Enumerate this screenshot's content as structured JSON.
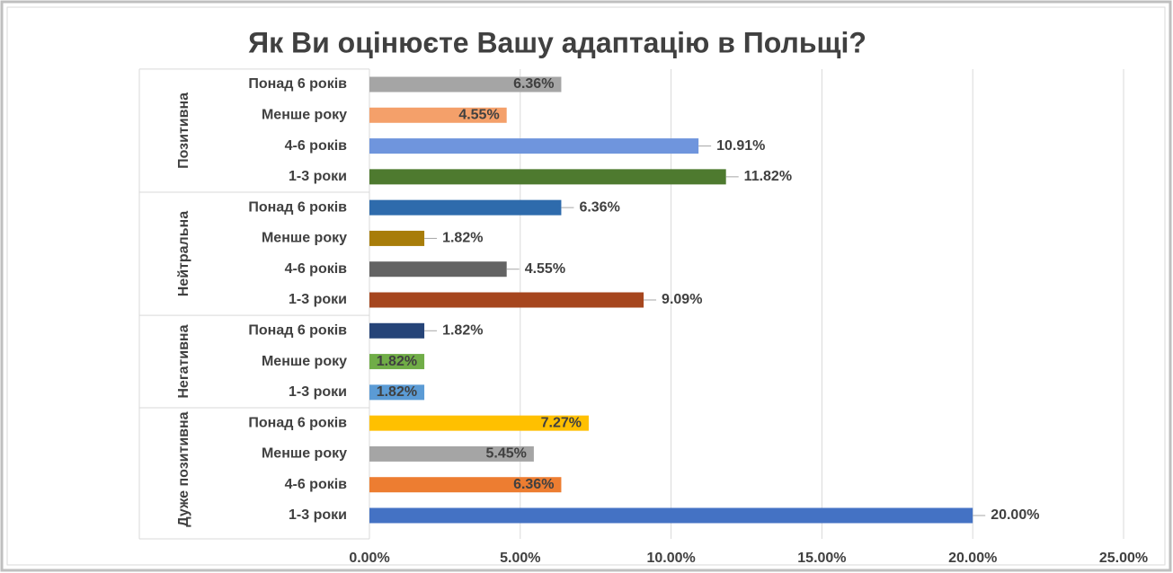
{
  "chart_data": {
    "type": "bar",
    "title": "Як Ви оцінюєте Вашу адаптацію в Польщі?",
    "groups": [
      {
        "name": "Позитивна",
        "bars": [
          {
            "category": "Понад 6 років",
            "value": 6.36,
            "value_label": "6.36%",
            "color": "#a5a5a5"
          },
          {
            "category": "Менше року",
            "value": 4.55,
            "value_label": "4.55%",
            "color": "#f4a06a"
          },
          {
            "category": "4-6 років",
            "value": 10.91,
            "value_label": "10.91%",
            "color": "#6f95dd"
          },
          {
            "category": "1-3 роки",
            "value": 11.82,
            "value_label": "11.82%",
            "color": "#4e7a2f"
          }
        ]
      },
      {
        "name": "Нейтральна",
        "bars": [
          {
            "category": "Понад 6 років",
            "value": 6.36,
            "value_label": "6.36%",
            "color": "#2e6bac"
          },
          {
            "category": "Менше року",
            "value": 1.82,
            "value_label": "1.82%",
            "color": "#a87d0a"
          },
          {
            "category": "4-6 років",
            "value": 4.55,
            "value_label": "4.55%",
            "color": "#636363"
          },
          {
            "category": "1-3 роки",
            "value": 9.09,
            "value_label": "9.09%",
            "color": "#a6461e"
          }
        ]
      },
      {
        "name": "Негативна",
        "bars": [
          {
            "category": "Понад 6 років",
            "value": 1.82,
            "value_label": "1.82%",
            "color": "#264478"
          },
          {
            "category": "Менше року",
            "value": 1.82,
            "value_label": "1.82%",
            "color": "#70ad47"
          },
          {
            "category": "1-3 роки",
            "value": 1.82,
            "value_label": "1.82%",
            "color": "#5b9bd5"
          }
        ]
      },
      {
        "name": "Дуже позитивна",
        "bars": [
          {
            "category": "Понад 6 років",
            "value": 7.27,
            "value_label": "7.27%",
            "color": "#ffc000"
          },
          {
            "category": "Менше року",
            "value": 5.45,
            "value_label": "5.45%",
            "color": "#a5a5a5"
          },
          {
            "category": "4-6 років",
            "value": 6.36,
            "value_label": "6.36%",
            "color": "#ed7d31"
          },
          {
            "category": "1-3 роки",
            "value": 20.0,
            "value_label": "20.00%",
            "color": "#4472c4"
          }
        ]
      }
    ],
    "xlim": [
      0,
      25
    ],
    "xticks": [
      {
        "value": 0,
        "label": "0.00%"
      },
      {
        "value": 5,
        "label": "5.00%"
      },
      {
        "value": 10,
        "label": "10.00%"
      },
      {
        "value": 15,
        "label": "15.00%"
      },
      {
        "value": 20,
        "label": "20.00%"
      },
      {
        "value": 25,
        "label": "25.00%"
      }
    ],
    "grid": true
  }
}
